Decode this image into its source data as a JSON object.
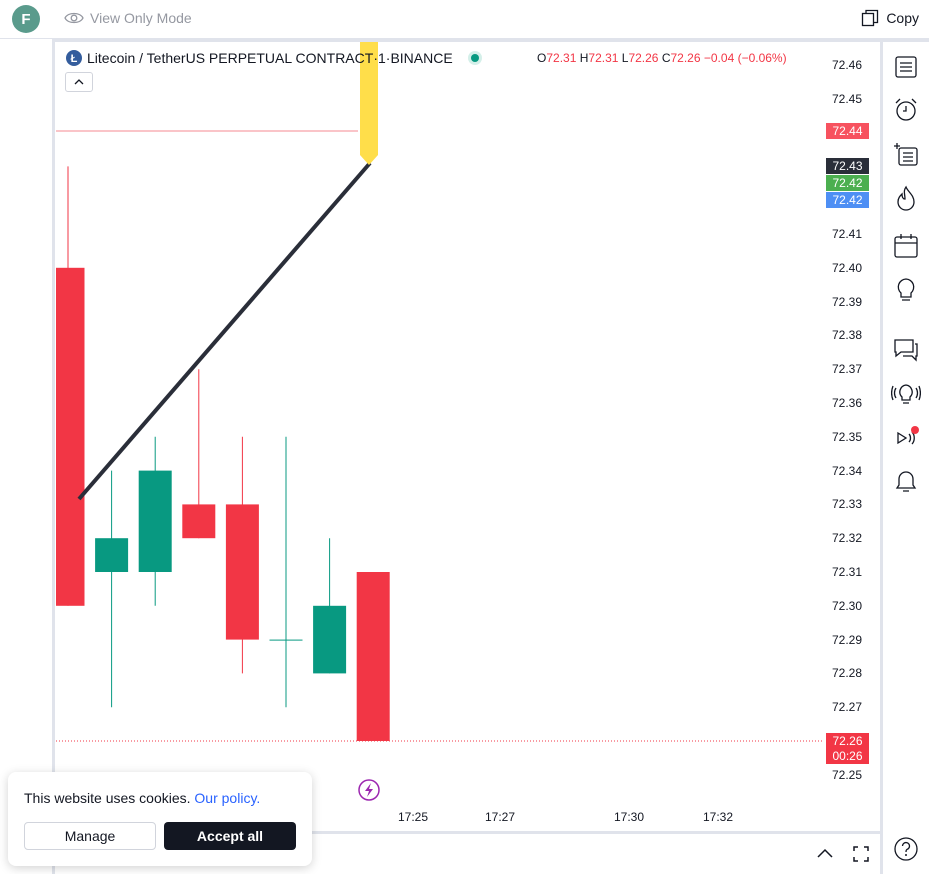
{
  "topbar": {
    "avatar_letter": "F",
    "view_mode_label": "View Only Mode",
    "copy_label": "Copy"
  },
  "legend": {
    "symbol": "Litecoin / TetherUS PERPETUAL CONTRACT",
    "interval": "1",
    "exchange": "BINANCE",
    "separator": " · ",
    "ohlc": {
      "o_key": "O",
      "o_val": "72.31",
      "h_key": "H",
      "h_val": "72.31",
      "l_key": "L",
      "l_val": "72.26",
      "c_key": "C",
      "c_val": "72.26",
      "change": "−0.04 (−0.06%)"
    }
  },
  "price_axis": {
    "ticks": [
      "72.46",
      "72.45",
      "72.41",
      "72.40",
      "72.39",
      "72.38",
      "72.37",
      "72.36",
      "72.35",
      "72.34",
      "72.33",
      "72.32",
      "72.31",
      "72.30",
      "72.29",
      "72.28",
      "72.27",
      "72.25"
    ],
    "tags": {
      "alert": "72.44",
      "high": "72.43",
      "bid": "72.42",
      "ask": "72.42",
      "last": "72.26",
      "countdown": "00:26"
    }
  },
  "time_axis": {
    "labels": [
      "17:25",
      "17:27",
      "17:30",
      "17:32"
    ]
  },
  "chart_data": {
    "type": "candlestick",
    "candles": [
      {
        "o": 72.4,
        "h": 72.43,
        "l": 72.3,
        "c": 72.3
      },
      {
        "o": 72.31,
        "h": 72.34,
        "l": 72.27,
        "c": 72.32
      },
      {
        "o": 72.31,
        "h": 72.35,
        "l": 72.3,
        "c": 72.34
      },
      {
        "o": 72.33,
        "h": 72.37,
        "l": 72.32,
        "c": 72.32
      },
      {
        "o": 72.33,
        "h": 72.35,
        "l": 72.28,
        "c": 72.29
      },
      {
        "o": 72.29,
        "h": 72.35,
        "l": 72.27,
        "c": 72.29
      },
      {
        "o": 72.28,
        "h": 72.32,
        "l": 72.28,
        "c": 72.3
      },
      {
        "o": 72.31,
        "h": 72.31,
        "l": 72.26,
        "c": 72.26
      }
    ],
    "alert_line": 72.44,
    "last_price_line": 72.26,
    "colors": {
      "up": "#089981",
      "down": "#f23645",
      "trendline": "#2a2e39",
      "marker": "#ffde4a"
    }
  },
  "cookie": {
    "text": "This website uses cookies.",
    "link": "Our policy.",
    "manage_label": "Manage",
    "accept_label": "Accept all"
  }
}
